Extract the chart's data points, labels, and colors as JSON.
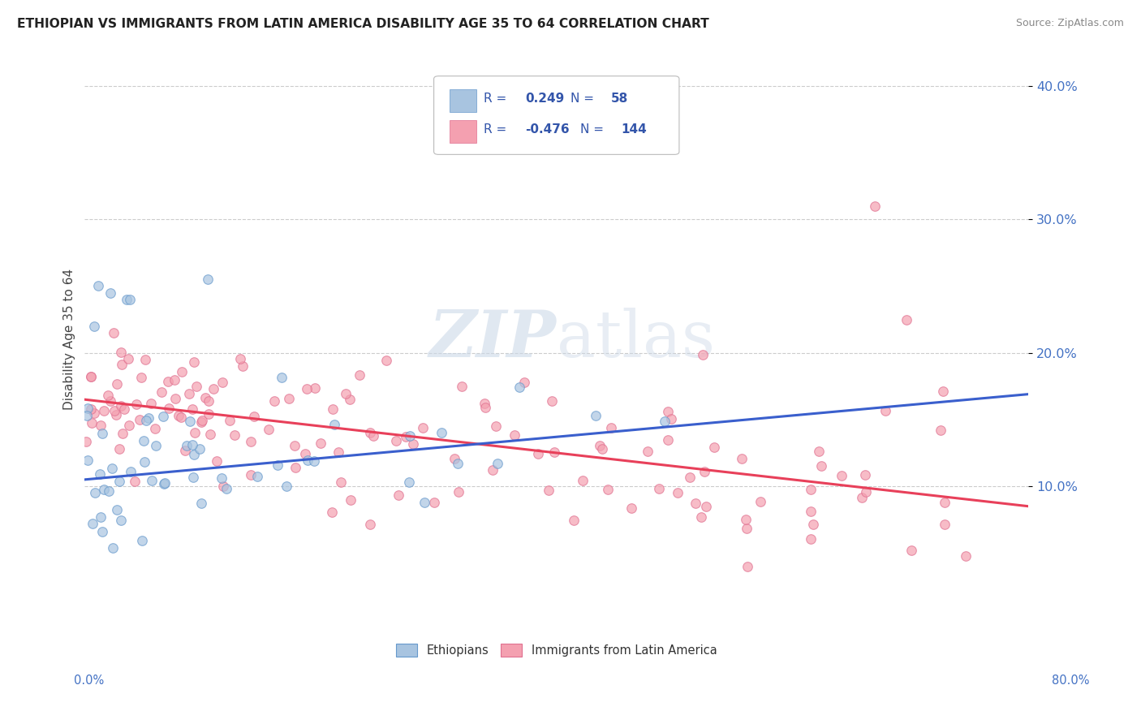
{
  "title": "ETHIOPIAN VS IMMIGRANTS FROM LATIN AMERICA DISABILITY AGE 35 TO 64 CORRELATION CHART",
  "source": "Source: ZipAtlas.com",
  "ylabel": "Disability Age 35 to 64",
  "legend_ethiopians": "Ethiopians",
  "legend_latin": "Immigrants from Latin America",
  "r_ethiopian": 0.249,
  "n_ethiopian": 58,
  "r_latin": -0.476,
  "n_latin": 144,
  "xlim": [
    0.0,
    0.8
  ],
  "ylim": [
    0.0,
    0.42
  ],
  "ytick_vals": [
    0.1,
    0.2,
    0.3,
    0.4
  ],
  "ytick_labels": [
    "10.0%",
    "20.0%",
    "30.0%",
    "40.0%"
  ],
  "color_ethiopian": "#a8c4e0",
  "color_latin": "#f4a0b0",
  "edge_ethiopian": "#6699cc",
  "edge_latin": "#e07090",
  "trendline_ethiopian": "#3a5fcd",
  "trendline_latin": "#e8405a",
  "trendline_dashed": "#aaaaaa",
  "watermark_color": "#ccd9e8",
  "background_color": "#ffffff",
  "grid_color": "#cccccc",
  "eth_slope": 0.08,
  "eth_intercept": 0.105,
  "lat_slope": -0.1,
  "lat_intercept": 0.165
}
